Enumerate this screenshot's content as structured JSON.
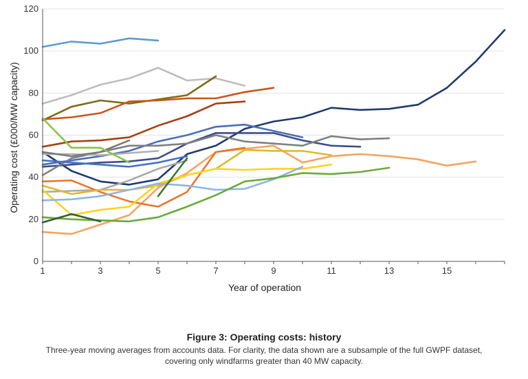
{
  "chart_data": {
    "type": "line",
    "xlabel": "Year of operation",
    "ylabel": "Operating cost (£000/MW capacity)",
    "xlim": [
      1,
      17
    ],
    "ylim": [
      0,
      120
    ],
    "xticks": [
      1,
      3,
      5,
      7,
      9,
      11,
      13,
      15
    ],
    "yticks": [
      0,
      20,
      40,
      60,
      80,
      100,
      120
    ],
    "grid": "horizontal",
    "legend": "none",
    "series": [
      {
        "color": "#5b9bd5",
        "x": [
          1,
          2,
          3,
          4,
          5
        ],
        "y": [
          102,
          104.5,
          103.5,
          106,
          105
        ]
      },
      {
        "color": "#bdbdbd",
        "x": [
          1,
          2,
          3,
          4,
          5,
          6,
          7,
          8
        ],
        "y": [
          75,
          79,
          84,
          87,
          92,
          86,
          87,
          83.5
        ]
      },
      {
        "color": "#7f6a1a",
        "x": [
          1,
          2,
          3,
          4,
          5,
          6,
          7
        ],
        "y": [
          67,
          73.5,
          76.5,
          75,
          77,
          79,
          88
        ]
      },
      {
        "color": "#c8561b",
        "x": [
          1,
          2,
          3,
          4,
          5,
          6,
          7,
          8,
          9
        ],
        "y": [
          67.5,
          68.5,
          70.5,
          76,
          76.5,
          77.5,
          77.5,
          80.5,
          82.5
        ]
      },
      {
        "color": "#a83f12",
        "x": [
          1,
          2,
          3,
          4,
          5,
          6,
          7,
          8
        ],
        "y": [
          54.5,
          57,
          57.5,
          59,
          64.5,
          69,
          75,
          76
        ]
      },
      {
        "color": "#1f3a6e",
        "x": [
          1,
          2,
          3,
          4,
          5,
          6,
          7,
          8,
          9,
          10,
          11,
          12,
          13,
          14,
          15,
          16,
          17
        ],
        "y": [
          52,
          43,
          38,
          36.5,
          39,
          51,
          55,
          63,
          66.5,
          68.5,
          73,
          72,
          72.5,
          74.5,
          82.5,
          95,
          110
        ]
      },
      {
        "color": "#4a6fb5",
        "x": [
          1,
          2,
          3,
          4,
          5,
          6,
          7,
          8,
          9,
          10
        ],
        "y": [
          46,
          48,
          50,
          52.5,
          57,
          60,
          64,
          65,
          62,
          59
        ]
      },
      {
        "color": "#3d4e8c",
        "x": [
          1,
          2,
          3,
          4,
          5,
          6,
          7,
          8,
          9,
          10,
          11,
          12
        ],
        "y": [
          45,
          46,
          47,
          47.5,
          49,
          56,
          61,
          61,
          61,
          57.5,
          55,
          54.5
        ]
      },
      {
        "color": "#808080",
        "x": [
          1,
          2,
          3,
          4,
          5,
          6,
          7,
          8,
          9,
          10,
          11,
          12,
          13
        ],
        "y": [
          41,
          49,
          52,
          55,
          55,
          56,
          60,
          57,
          56,
          55,
          59.5,
          58,
          58.5
        ]
      },
      {
        "color": "#b0b0b0",
        "x": [
          1,
          2,
          3,
          4,
          5
        ],
        "y": [
          51,
          51,
          50.5,
          51.5,
          52.5
        ]
      },
      {
        "color": "#a9a9a9",
        "x": [
          1,
          2,
          3,
          4,
          5,
          6
        ],
        "y": [
          33,
          33.5,
          34,
          38.5,
          44,
          48
        ]
      },
      {
        "color": "#7a7a7a",
        "x": [
          1,
          2,
          3,
          4
        ],
        "y": [
          52,
          50,
          52,
          57.5
        ]
      },
      {
        "color": "#4472c4",
        "x": [
          1,
          2,
          3,
          4,
          5,
          6
        ],
        "y": [
          48,
          47,
          46,
          45,
          47,
          50
        ]
      },
      {
        "color": "#8bc34a",
        "x": [
          1,
          2,
          3,
          4
        ],
        "y": [
          68,
          54,
          54,
          47
        ]
      },
      {
        "color": "#f4a460",
        "x": [
          1,
          2,
          3,
          4,
          5,
          6,
          7,
          8,
          9,
          10,
          11,
          12,
          13,
          14,
          15,
          16
        ],
        "y": [
          14,
          13,
          17.5,
          22,
          35,
          42,
          52,
          53.5,
          55,
          47,
          50,
          51,
          50,
          48.5,
          45.5,
          47.5
        ]
      },
      {
        "color": "#e8762b",
        "x": [
          1,
          2,
          3,
          4,
          5,
          6,
          7,
          8
        ],
        "y": [
          38,
          38.5,
          33,
          28.5,
          26,
          33,
          52,
          54
        ]
      },
      {
        "color": "#e0b830",
        "x": [
          1,
          2,
          3,
          4,
          5,
          6,
          7,
          8,
          9,
          10,
          11
        ],
        "y": [
          36,
          32,
          34,
          34,
          36,
          41,
          44,
          53,
          52.5,
          52.5,
          50.5
        ]
      },
      {
        "color": "#ffd21f",
        "x": [
          1,
          2,
          3,
          4,
          5,
          6,
          7,
          8,
          9,
          10,
          11
        ],
        "y": [
          34,
          22,
          24.5,
          26,
          37,
          41,
          44,
          43.5,
          44,
          44,
          46
        ]
      },
      {
        "color": "#8fb4e3",
        "x": [
          1,
          2,
          3,
          4,
          5,
          6,
          7,
          8,
          9,
          10
        ],
        "y": [
          29,
          29.5,
          31,
          34,
          37,
          36,
          34,
          34.5,
          39,
          45
        ]
      },
      {
        "color": "#6aaa3a",
        "x": [
          1,
          2,
          3,
          4,
          5,
          6,
          7,
          8,
          9,
          10,
          11,
          12,
          13
        ],
        "y": [
          21,
          20,
          19.5,
          19,
          21,
          26,
          31.5,
          38,
          39.5,
          42,
          41.5,
          42.5,
          44.5
        ]
      },
      {
        "color": "#2f5f2f",
        "x": [
          1,
          2,
          3
        ],
        "y": [
          18.5,
          22.5,
          19
        ]
      },
      {
        "color": "#3a7a3a",
        "x": [
          5,
          6
        ],
        "y": [
          31,
          49
        ]
      }
    ]
  },
  "caption": {
    "title": "Figure 3: Operating costs: history",
    "text_line1": "Three-year moving averages from accounts data. For clarity, the data shown are a subsample of the full GWPF dataset,",
    "text_line2": "covering only windfarms greater than 40 MW capacity."
  }
}
